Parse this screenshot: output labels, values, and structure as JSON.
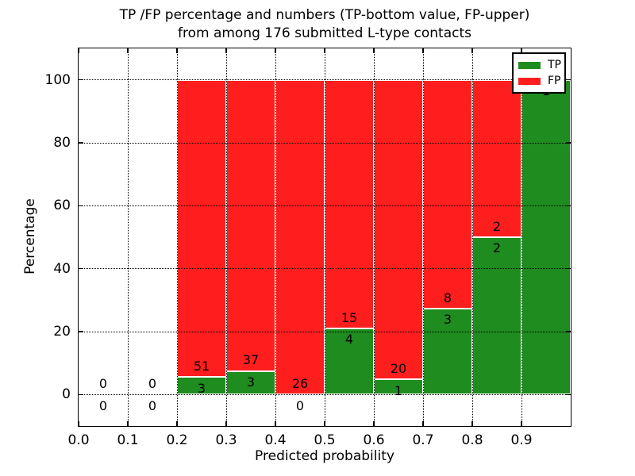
{
  "chart_data": {
    "type": "stacked_bar",
    "title_line1": "TP /FP percentage and numbers (TP-bottom value, FP-upper)",
    "title_line2": "from among 176 submitted L-type contacts",
    "xlabel": "Predicted probability",
    "ylabel": "Percentage",
    "xlim": [
      0.0,
      1.0
    ],
    "ylim": [
      -10,
      110
    ],
    "bar_width": 0.1,
    "grid": true,
    "legend_position": "upper right",
    "colors": {
      "tp": "#1e8c1e",
      "fp": "#fe1e1e",
      "grid": "#000000"
    },
    "legend": [
      {
        "name": "TP",
        "color": "#1e8c1e"
      },
      {
        "name": "FP",
        "color": "#fe1e1e"
      }
    ],
    "xticks": [
      {
        "value": 0.0,
        "label": "0.0"
      },
      {
        "value": 0.1,
        "label": "0.1"
      },
      {
        "value": 0.2,
        "label": "0.2"
      },
      {
        "value": 0.3,
        "label": "0.3"
      },
      {
        "value": 0.4,
        "label": "0.4"
      },
      {
        "value": 0.5,
        "label": "0.5"
      },
      {
        "value": 0.6,
        "label": "0.6"
      },
      {
        "value": 0.7,
        "label": "0.7"
      },
      {
        "value": 0.8,
        "label": "0.8"
      },
      {
        "value": 0.9,
        "label": "0.9"
      }
    ],
    "yticks": [
      {
        "value": 0,
        "label": "0"
      },
      {
        "value": 20,
        "label": "20"
      },
      {
        "value": 40,
        "label": "40"
      },
      {
        "value": 60,
        "label": "60"
      },
      {
        "value": 80,
        "label": "80"
      },
      {
        "value": 100,
        "label": "100"
      }
    ],
    "bins": [
      {
        "x0": 0.0,
        "x1": 0.1,
        "tp_count": "0",
        "fp_count": "0",
        "tp_pct": 0,
        "fp_pct": 0
      },
      {
        "x0": 0.1,
        "x1": 0.2,
        "tp_count": "0",
        "fp_count": "0",
        "tp_pct": 0,
        "fp_pct": 0
      },
      {
        "x0": 0.2,
        "x1": 0.3,
        "tp_count": "3",
        "fp_count": "51",
        "tp_pct": 5.56,
        "fp_pct": 94.44
      },
      {
        "x0": 0.3,
        "x1": 0.4,
        "tp_count": "3",
        "fp_count": "37",
        "tp_pct": 7.5,
        "fp_pct": 92.5
      },
      {
        "x0": 0.4,
        "x1": 0.5,
        "tp_count": "0",
        "fp_count": "26",
        "tp_pct": 0,
        "fp_pct": 100
      },
      {
        "x0": 0.5,
        "x1": 0.6,
        "tp_count": "4",
        "fp_count": "15",
        "tp_pct": 21.05,
        "fp_pct": 78.95
      },
      {
        "x0": 0.6,
        "x1": 0.7,
        "tp_count": "1",
        "fp_count": "20",
        "tp_pct": 4.76,
        "fp_pct": 95.24
      },
      {
        "x0": 0.7,
        "x1": 0.8,
        "tp_count": "3",
        "fp_count": "8",
        "tp_pct": 27.27,
        "fp_pct": 72.73
      },
      {
        "x0": 0.8,
        "x1": 0.9,
        "tp_count": "2",
        "fp_count": "2",
        "tp_pct": 50,
        "fp_pct": 50
      },
      {
        "x0": 0.9,
        "x1": 1.0,
        "tp_count": "1",
        "fp_count": "",
        "tp_pct": 100,
        "fp_pct": 0
      }
    ],
    "annotation_offsets": {
      "fp_above_boundary_pct": 3.3,
      "tp_below_boundary_pct": 3.6
    }
  }
}
